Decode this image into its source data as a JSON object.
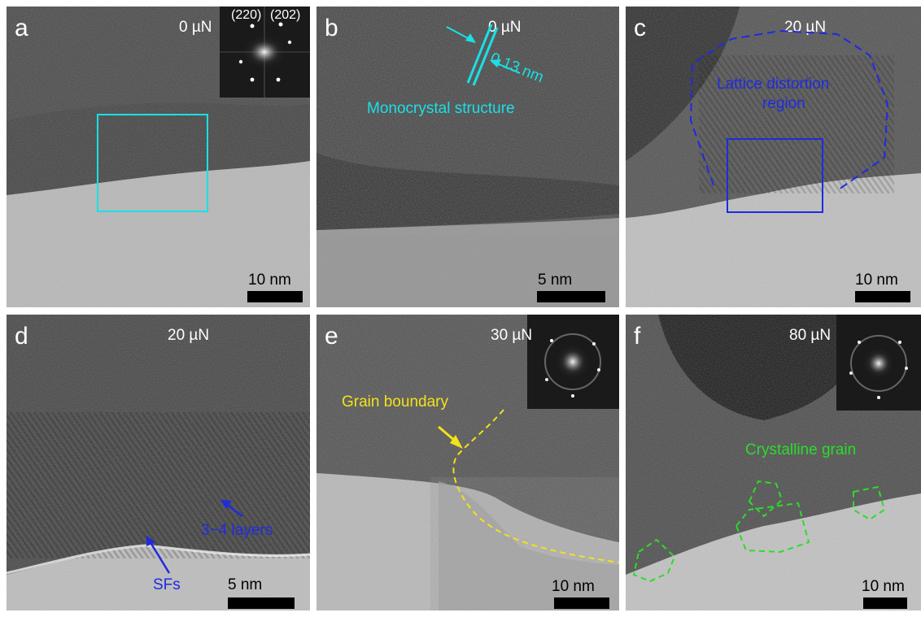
{
  "panels": {
    "a": {
      "letter": "a",
      "force": "0 µN",
      "scale": "10 nm",
      "fft_labels": [
        "(220)",
        "(202)"
      ]
    },
    "b": {
      "letter": "b",
      "force": "0 µN",
      "scale": "5 nm",
      "spacing": "0.13 nm",
      "annotation": "Monocrystal structure"
    },
    "c": {
      "letter": "c",
      "force": "20 µN",
      "scale": "10 nm",
      "annotation_line1": "Lattice distortion",
      "annotation_line2": "region"
    },
    "d": {
      "letter": "d",
      "force": "20 µN",
      "scale": "5 nm",
      "annotation_sfs": "SFs",
      "annotation_layers": "3~4 layers"
    },
    "e": {
      "letter": "e",
      "force": "30 µN",
      "scale": "10 nm",
      "annotation": "Grain boundary"
    },
    "f": {
      "letter": "f",
      "force": "80 µN",
      "scale": "10 nm",
      "annotation": "Crystalline grain"
    }
  },
  "colors": {
    "cyan": "#19e0e6",
    "blue": "#1f2be0",
    "yellow": "#f2e21a",
    "green": "#2bdc2b"
  }
}
